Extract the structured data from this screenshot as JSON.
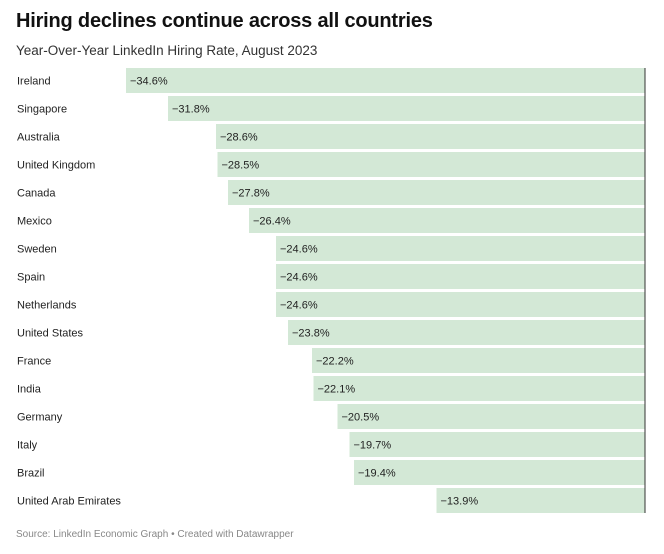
{
  "title": "Hiring declines continue across all countries",
  "subtitle": "Year-Over-Year LinkedIn Hiring Rate, August 2023",
  "source": "Source: LinkedIn Economic Graph • Created with Datawrapper",
  "chart_data": {
    "type": "bar",
    "orientation": "horizontal",
    "categories": [
      "Ireland",
      "Singapore",
      "Australia",
      "United Kingdom",
      "Canada",
      "Mexico",
      "Sweden",
      "Spain",
      "Netherlands",
      "United States",
      "France",
      "India",
      "Germany",
      "Italy",
      "Brazil",
      "United Arab Emirates"
    ],
    "values": [
      -34.6,
      -31.8,
      -28.6,
      -28.5,
      -27.8,
      -26.4,
      -24.6,
      -24.6,
      -24.6,
      -23.8,
      -22.2,
      -22.1,
      -20.5,
      -19.7,
      -19.4,
      -13.9
    ],
    "value_labels": [
      "−34.6%",
      "−31.8%",
      "−28.6%",
      "−28.5%",
      "−27.8%",
      "−26.4%",
      "−24.6%",
      "−24.6%",
      "−24.6%",
      "−23.8%",
      "−22.2%",
      "−22.1%",
      "−20.5%",
      "−19.7%",
      "−19.4%",
      "−13.9%"
    ],
    "xlim": [
      -43,
      0
    ],
    "grid": false,
    "colors": {
      "bar": "#d3e8d6",
      "baseline": "#333333",
      "label": "#222222"
    }
  }
}
